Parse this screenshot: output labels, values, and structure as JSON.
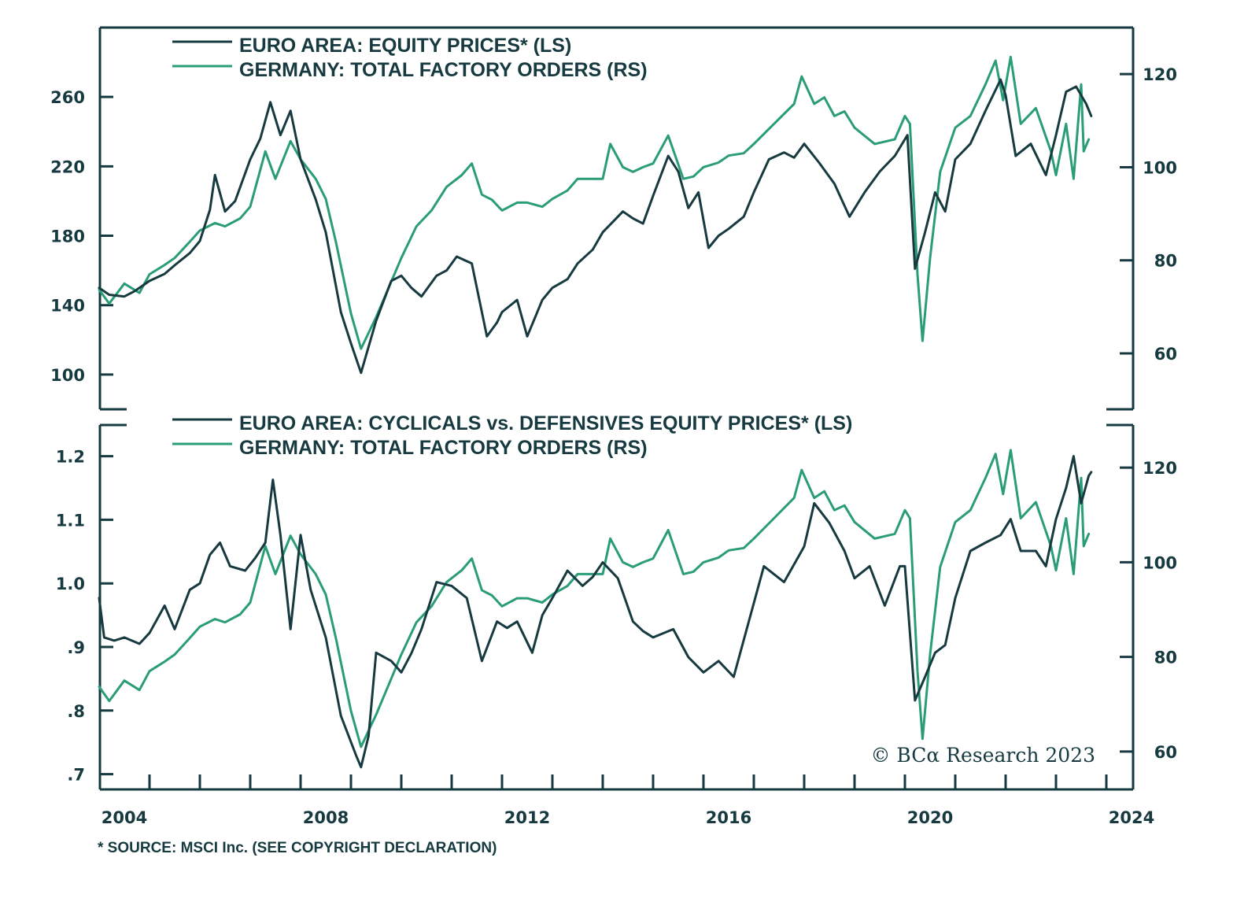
{
  "colors": {
    "dark": "#163a3f",
    "green": "#2a9d78"
  },
  "chart_data": [
    {
      "type": "line",
      "panel": "top",
      "title": "",
      "legend": [
        {
          "label": "EURO AREA: EQUITY PRICES* (LS)",
          "color": "#163a3f",
          "axis": "left"
        },
        {
          "label": "GERMANY: TOTAL FACTORY ORDERS (RS)",
          "color": "#2a9d78",
          "axis": "right"
        }
      ],
      "legend_placement": "top-left",
      "xlim": [
        2004.0,
        2024.5
      ],
      "x_ticks": [
        2004,
        2008,
        2012,
        2016,
        2020,
        2024
      ],
      "y_left": {
        "ticks": [
          100,
          140,
          180,
          220,
          260
        ],
        "tick_labels": [
          "100",
          "140",
          "180",
          "220",
          "260"
        ],
        "lim": [
          80,
          300
        ]
      },
      "y_right": {
        "ticks": [
          60,
          80,
          100,
          120
        ],
        "tick_labels": [
          "60",
          "80",
          "100",
          "120"
        ],
        "lim": [
          48,
          130
        ]
      },
      "series": [
        {
          "name": "EURO AREA: EQUITY PRICES* (LS)",
          "axis": "left",
          "color": "#163a3f",
          "x": [
            2004.0,
            2004.2,
            2004.5,
            2004.7,
            2005.0,
            2005.3,
            2005.5,
            2005.8,
            2006.0,
            2006.2,
            2006.3,
            2006.5,
            2006.7,
            2007.0,
            2007.2,
            2007.4,
            2007.6,
            2007.8,
            2008.0,
            2008.3,
            2008.5,
            2008.8,
            2009.0,
            2009.2,
            2009.5,
            2009.8,
            2010.0,
            2010.2,
            2010.4,
            2010.7,
            2010.9,
            2011.1,
            2011.4,
            2011.7,
            2011.9,
            2012.0,
            2012.3,
            2012.5,
            2012.8,
            2013.0,
            2013.3,
            2013.5,
            2013.8,
            2014.0,
            2014.2,
            2014.4,
            2014.6,
            2014.8,
            2015.0,
            2015.3,
            2015.5,
            2015.7,
            2015.9,
            2016.1,
            2016.3,
            2016.5,
            2016.8,
            2017.0,
            2017.3,
            2017.6,
            2017.8,
            2018.0,
            2018.3,
            2018.6,
            2018.9,
            2019.2,
            2019.5,
            2019.8,
            2020.05,
            2020.2,
            2020.4,
            2020.6,
            2020.8,
            2021.0,
            2021.3,
            2021.6,
            2021.9,
            2022.0,
            2022.2,
            2022.5,
            2022.8,
            2023.0,
            2023.2,
            2023.4,
            2023.6,
            2023.7
          ],
          "values": [
            150,
            146,
            145,
            148,
            154,
            158,
            163,
            170,
            177,
            195,
            215,
            194,
            200,
            224,
            236,
            257,
            238,
            252,
            224,
            201,
            182,
            136,
            118,
            101,
            131,
            154,
            157,
            150,
            145,
            157,
            160,
            168,
            164,
            122,
            130,
            136,
            143,
            122,
            143,
            150,
            155,
            164,
            172,
            182,
            188,
            194,
            190,
            187,
            203,
            226,
            217,
            196,
            205,
            173,
            180,
            184,
            191,
            205,
            224,
            228,
            225,
            233,
            222,
            210,
            191,
            205,
            217,
            226,
            238,
            161,
            182,
            205,
            194,
            224,
            233,
            252,
            270,
            261,
            226,
            233,
            215,
            238,
            263,
            266,
            256,
            249
          ]
        },
        {
          "name": "GERMANY: TOTAL FACTORY ORDERS (RS)",
          "axis": "right",
          "color": "#2a9d78",
          "x": [
            2004.0,
            2004.2,
            2004.5,
            2004.8,
            2005.0,
            2005.3,
            2005.5,
            2005.8,
            2006.0,
            2006.3,
            2006.5,
            2006.8,
            2007.0,
            2007.3,
            2007.5,
            2007.8,
            2008.0,
            2008.3,
            2008.5,
            2008.7,
            2009.0,
            2009.2,
            2009.5,
            2009.8,
            2010.0,
            2010.3,
            2010.6,
            2010.9,
            2011.2,
            2011.4,
            2011.6,
            2011.8,
            2012.0,
            2012.3,
            2012.5,
            2012.8,
            2013.0,
            2013.3,
            2013.5,
            2013.8,
            2014.0,
            2014.15,
            2014.4,
            2014.6,
            2014.8,
            2015.0,
            2015.3,
            2015.6,
            2015.8,
            2016.0,
            2016.3,
            2016.5,
            2016.8,
            2017.0,
            2017.4,
            2017.8,
            2017.95,
            2018.2,
            2018.4,
            2018.6,
            2018.8,
            2019.0,
            2019.4,
            2019.8,
            2020.0,
            2020.1,
            2020.25,
            2020.35,
            2020.5,
            2020.7,
            2021.0,
            2021.3,
            2021.6,
            2021.8,
            2021.95,
            2022.1,
            2022.3,
            2022.6,
            2022.9,
            2023.0,
            2023.2,
            2023.35,
            2023.5,
            2023.55,
            2023.65
          ],
          "values": [
            73.7,
            70.7,
            75,
            73,
            77,
            79,
            80.5,
            84,
            86.4,
            88,
            87.3,
            89,
            91.5,
            103.4,
            97.5,
            105.6,
            101.7,
            97.5,
            93.2,
            84,
            68.6,
            61,
            67.8,
            75.4,
            80.5,
            87.3,
            90.7,
            95.8,
            98.3,
            100.8,
            94.1,
            93,
            90.7,
            92.4,
            92.4,
            91.5,
            93.2,
            95,
            97.5,
            97.5,
            97.5,
            105,
            100,
            99,
            100,
            100.8,
            106.8,
            97.5,
            98,
            100,
            101,
            102.5,
            103,
            105,
            109.3,
            113.6,
            119.5,
            113.6,
            115,
            111,
            112,
            108.5,
            105,
            106,
            111,
            109.3,
            77,
            62.7,
            80.5,
            99,
            108.5,
            111,
            117.8,
            122.9,
            114.4,
            123.7,
            109.3,
            112.7,
            103.4,
            98.3,
            109.3,
            97.5,
            117.8,
            103.4,
            106
          ]
        }
      ]
    },
    {
      "type": "line",
      "panel": "bottom",
      "title": "",
      "legend": [
        {
          "label": "EURO AREA: CYCLICALS vs. DEFENSIVES EQUITY PRICES* (LS)",
          "color": "#163a3f",
          "axis": "left"
        },
        {
          "label": "GERMANY: TOTAL FACTORY ORDERS (RS)",
          "color": "#2a9d78",
          "axis": "right"
        }
      ],
      "legend_placement": "top-left",
      "xlim": [
        2004.0,
        2024.5
      ],
      "x_ticks": [
        2004,
        2008,
        2012,
        2016,
        2020,
        2024
      ],
      "y_left": {
        "ticks": [
          0.7,
          0.8,
          0.9,
          1.0,
          1.1,
          1.2
        ],
        "tick_labels": [
          ".7",
          ".8",
          ".9",
          "1.0",
          "1.1",
          "1.2"
        ],
        "lim": [
          0.676,
          1.249
        ]
      },
      "y_right": {
        "ticks": [
          60,
          80,
          100,
          120
        ],
        "tick_labels": [
          "60",
          "80",
          "100",
          "120"
        ],
        "lim": [
          52,
          129
        ]
      },
      "series": [
        {
          "name": "EURO AREA: CYCLICALS vs. DEFENSIVES EQUITY PRICES* (LS)",
          "axis": "left",
          "color": "#163a3f",
          "x": [
            2004.0,
            2004.1,
            2004.3,
            2004.5,
            2004.8,
            2005.0,
            2005.3,
            2005.5,
            2005.8,
            2006.0,
            2006.2,
            2006.4,
            2006.6,
            2006.9,
            2007.1,
            2007.3,
            2007.45,
            2007.6,
            2007.8,
            2008.0,
            2008.2,
            2008.5,
            2008.8,
            2009.1,
            2009.2,
            2009.35,
            2009.5,
            2009.8,
            2010.0,
            2010.2,
            2010.4,
            2010.7,
            2011.0,
            2011.3,
            2011.6,
            2011.9,
            2012.1,
            2012.3,
            2012.6,
            2012.8,
            2013.0,
            2013.3,
            2013.6,
            2013.8,
            2014.0,
            2014.3,
            2014.6,
            2014.8,
            2015.0,
            2015.4,
            2015.7,
            2016.0,
            2016.3,
            2016.6,
            2016.9,
            2017.2,
            2017.6,
            2018.0,
            2018.2,
            2018.5,
            2018.8,
            2019.0,
            2019.3,
            2019.6,
            2019.9,
            2020.0,
            2020.2,
            2020.4,
            2020.6,
            2020.8,
            2021.0,
            2021.3,
            2021.6,
            2021.9,
            2022.1,
            2022.3,
            2022.6,
            2022.8,
            2023.0,
            2023.2,
            2023.35,
            2023.5,
            2023.65,
            2023.7
          ],
          "values": [
            0.977,
            0.915,
            0.91,
            0.915,
            0.905,
            0.922,
            0.965,
            0.928,
            0.99,
            1.0,
            1.045,
            1.064,
            1.027,
            1.02,
            1.04,
            1.064,
            1.163,
            1.076,
            0.928,
            1.076,
            0.99,
            0.915,
            0.792,
            0.73,
            0.711,
            0.76,
            0.891,
            0.878,
            0.86,
            0.89,
            0.928,
            1.002,
            0.996,
            0.977,
            0.878,
            0.94,
            0.93,
            0.94,
            0.891,
            0.95,
            0.977,
            1.02,
            0.996,
            1.01,
            1.033,
            1.008,
            0.94,
            0.925,
            0.915,
            0.928,
            0.884,
            0.86,
            0.878,
            0.853,
            0.94,
            1.027,
            1.002,
            1.058,
            1.126,
            1.095,
            1.051,
            1.008,
            1.027,
            0.965,
            1.027,
            1.027,
            0.816,
            0.853,
            0.891,
            0.903,
            0.977,
            1.051,
            1.064,
            1.076,
            1.101,
            1.051,
            1.051,
            1.027,
            1.101,
            1.15,
            1.2,
            1.126,
            1.169,
            1.175
          ]
        },
        {
          "name": "GERMANY: TOTAL FACTORY ORDERS (RS)",
          "axis": "right",
          "color": "#2a9d78",
          "x": [
            2004.0,
            2004.2,
            2004.5,
            2004.8,
            2005.0,
            2005.3,
            2005.5,
            2005.8,
            2006.0,
            2006.3,
            2006.5,
            2006.8,
            2007.0,
            2007.3,
            2007.5,
            2007.8,
            2008.0,
            2008.3,
            2008.5,
            2008.7,
            2009.0,
            2009.2,
            2009.5,
            2009.8,
            2010.0,
            2010.3,
            2010.6,
            2010.9,
            2011.2,
            2011.4,
            2011.6,
            2011.8,
            2012.0,
            2012.3,
            2012.5,
            2012.8,
            2013.0,
            2013.3,
            2013.5,
            2013.8,
            2014.0,
            2014.15,
            2014.4,
            2014.6,
            2014.8,
            2015.0,
            2015.3,
            2015.6,
            2015.8,
            2016.0,
            2016.3,
            2016.5,
            2016.8,
            2017.0,
            2017.4,
            2017.8,
            2017.95,
            2018.2,
            2018.4,
            2018.6,
            2018.8,
            2019.0,
            2019.4,
            2019.8,
            2020.0,
            2020.1,
            2020.25,
            2020.35,
            2020.5,
            2020.7,
            2021.0,
            2021.3,
            2021.6,
            2021.8,
            2021.95,
            2022.1,
            2022.3,
            2022.6,
            2022.9,
            2023.0,
            2023.2,
            2023.35,
            2023.5,
            2023.55,
            2023.65
          ],
          "values": [
            73.7,
            70.7,
            75,
            73,
            77,
            79,
            80.5,
            84,
            86.4,
            88,
            87.3,
            89,
            91.5,
            103.4,
            97.5,
            105.6,
            101.7,
            97.5,
            93.2,
            84,
            68.6,
            61,
            67.8,
            75.4,
            80.5,
            87.3,
            90.7,
            95.8,
            98.3,
            100.8,
            94.1,
            93,
            90.7,
            92.4,
            92.4,
            91.5,
            93.2,
            95,
            97.5,
            97.5,
            97.5,
            105,
            100,
            99,
            100,
            100.8,
            106.8,
            97.5,
            98,
            100,
            101,
            102.5,
            103,
            105,
            109.3,
            113.6,
            119.5,
            113.6,
            115,
            111,
            112,
            108.5,
            105,
            106,
            111,
            109.3,
            77,
            62.7,
            80.5,
            99,
            108.5,
            111,
            117.8,
            122.9,
            114.4,
            123.7,
            109.3,
            112.7,
            103.4,
            98.3,
            109.3,
            97.5,
            117.8,
            103.4,
            106
          ]
        }
      ]
    }
  ],
  "x_axis_labels": [
    "2004",
    "2008",
    "2012",
    "2016",
    "2020",
    "2024"
  ],
  "watermark": "© BCα Research 2023",
  "footnote": "* SOURCE: MSCI Inc. (SEE COPYRIGHT DECLARATION)"
}
